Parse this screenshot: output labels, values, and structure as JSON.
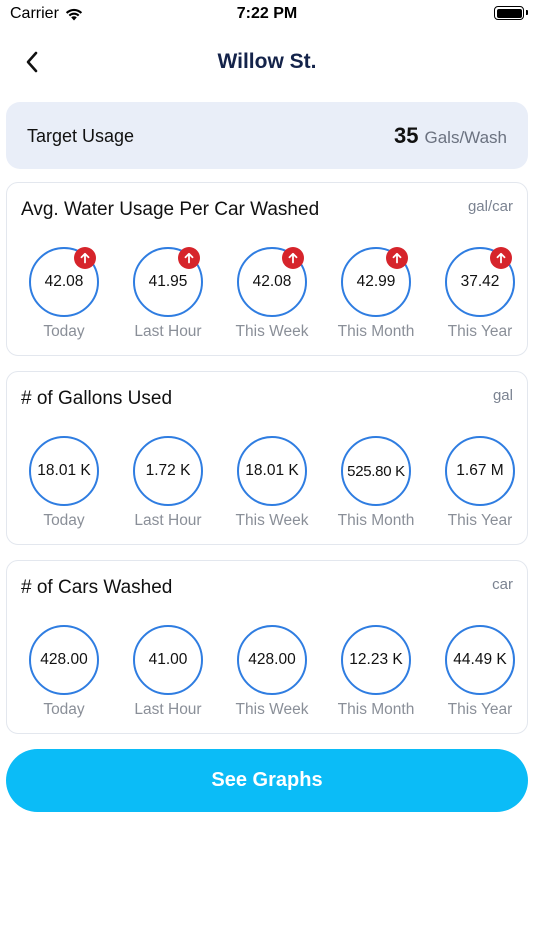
{
  "status_bar": {
    "carrier": "Carrier",
    "time": "7:22 PM"
  },
  "nav": {
    "title": "Willow St."
  },
  "target": {
    "label": "Target Usage",
    "value": "35",
    "unit": "Gals/Wash"
  },
  "cards": [
    {
      "title": "Avg. Water Usage Per Car Washed",
      "unit": "gal/car",
      "metrics": [
        {
          "value": "42.08",
          "period": "Today",
          "trend": "up"
        },
        {
          "value": "41.95",
          "period": "Last Hour",
          "trend": "up"
        },
        {
          "value": "42.08",
          "period": "This Week",
          "trend": "up"
        },
        {
          "value": "42.99",
          "period": "This Month",
          "trend": "up"
        },
        {
          "value": "37.42",
          "period": "This Year",
          "trend": "up"
        }
      ]
    },
    {
      "title": "# of Gallons Used",
      "unit": "gal",
      "metrics": [
        {
          "value": "18.01 K",
          "period": "Today"
        },
        {
          "value": "1.72 K",
          "period": "Last Hour"
        },
        {
          "value": "18.01 K",
          "period": "This Week"
        },
        {
          "value": "525.80 K",
          "period": "This Month"
        },
        {
          "value": "1.67 M",
          "period": "This Year"
        }
      ]
    },
    {
      "title": "# of Cars Washed",
      "unit": "car",
      "metrics": [
        {
          "value": "428.00",
          "period": "Today"
        },
        {
          "value": "41.00",
          "period": "Last Hour"
        },
        {
          "value": "428.00",
          "period": "This Week"
        },
        {
          "value": "12.23 K",
          "period": "This Month"
        },
        {
          "value": "44.49 K",
          "period": "This Year"
        }
      ]
    }
  ],
  "colors": {
    "accent": "#0bbcf7",
    "ring": "#2f7de1",
    "alert": "#d6242b",
    "title": "#14234a"
  },
  "icons": {
    "back": "chevron-left-icon",
    "trend_up": "arrow-up-icon",
    "wifi": "wifi-icon",
    "battery": "battery-icon"
  },
  "actions": {
    "see_graphs": "See Graphs"
  }
}
